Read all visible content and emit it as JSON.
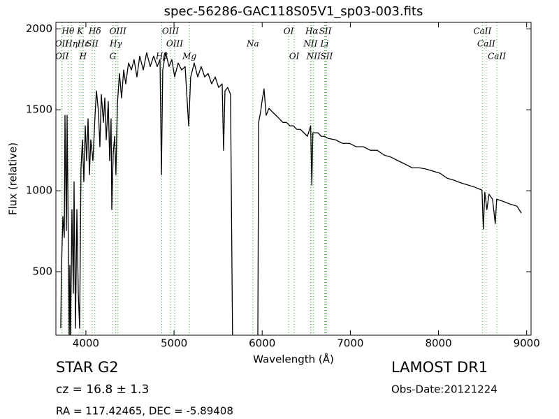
{
  "chart_data": {
    "type": "line",
    "title": "spec-56286-GAC118S05V1_sp03-003.fits",
    "x_label": "Wavelength (Å)",
    "y_label": "Flux (relative)",
    "xlim": [
      3660,
      9050
    ],
    "ylim": [
      108,
      2040
    ],
    "xticks": [
      4000,
      5000,
      6000,
      7000,
      8000,
      9000
    ],
    "yticks": [
      500,
      1000,
      1500,
      2000
    ],
    "series": [
      {
        "color": "#000000",
        "x": [
          3715,
          3723,
          3739,
          3755,
          3763,
          3779,
          3787,
          3795,
          3811,
          3818,
          3826,
          3842,
          3858,
          3866,
          3882,
          3898,
          3914,
          3929,
          3945,
          3961,
          3977,
          3993,
          4009,
          4025,
          4040,
          4056,
          4080,
          4104,
          4120,
          4143,
          4159,
          4175,
          4199,
          4215,
          4231,
          4254,
          4270,
          4286,
          4294,
          4310,
          4326,
          4341,
          4357,
          4381,
          4405,
          4429,
          4452,
          4484,
          4516,
          4547,
          4579,
          4611,
          4651,
          4690,
          4730,
          4769,
          4809,
          4841,
          4857,
          4872,
          4904,
          4944,
          4975,
          5007,
          5047,
          5086,
          5126,
          5166,
          5189,
          5229,
          5269,
          5308,
          5348,
          5387,
          5427,
          5467,
          5506,
          5546,
          5562,
          5578,
          5609,
          5641,
          5665,
          5950,
          5960,
          5982,
          5998,
          6021,
          6045,
          6077,
          6116,
          6156,
          6196,
          6235,
          6275,
          6315,
          6354,
          6394,
          6433,
          6473,
          6513,
          6550,
          6563,
          6575,
          6592,
          6632,
          6671,
          6711,
          6750,
          6830,
          6909,
          6988,
          7067,
          7147,
          7226,
          7305,
          7384,
          7464,
          7543,
          7622,
          7701,
          7780,
          7860,
          7939,
          8018,
          8097,
          8177,
          8256,
          8335,
          8414,
          8493,
          8509,
          8525,
          8549,
          8573,
          8613,
          8644,
          8660,
          8731,
          8811,
          8890,
          8940
        ],
        "values": [
          151,
          517,
          841,
          711,
          1466,
          754,
          1466,
          1013,
          80,
          539,
          80,
          884,
          367,
          1056,
          151,
          884,
          367,
          151,
          1142,
          1315,
          1056,
          1401,
          1185,
          1444,
          1099,
          1315,
          1185,
          1466,
          1616,
          1487,
          1272,
          1595,
          1422,
          1573,
          1315,
          1552,
          1185,
          1444,
          884,
          1229,
          1336,
          1099,
          1530,
          1724,
          1573,
          1746,
          1660,
          1789,
          1746,
          1810,
          1703,
          1832,
          1746,
          1853,
          1767,
          1832,
          1767,
          1810,
          1099,
          1746,
          1853,
          1767,
          1810,
          1703,
          1789,
          1746,
          1767,
          1401,
          1703,
          1789,
          1703,
          1767,
          1703,
          1724,
          1660,
          1703,
          1638,
          1660,
          1250,
          1616,
          1638,
          1595,
          20,
          20,
          1422,
          1487,
          1552,
          1629,
          1466,
          1509,
          1487,
          1466,
          1444,
          1422,
          1422,
          1401,
          1401,
          1379,
          1379,
          1358,
          1336,
          1401,
          1034,
          1358,
          1358,
          1358,
          1336,
          1336,
          1323,
          1315,
          1293,
          1293,
          1272,
          1272,
          1250,
          1250,
          1220,
          1207,
          1185,
          1164,
          1142,
          1142,
          1134,
          1121,
          1108,
          1078,
          1065,
          1048,
          1035,
          1022,
          1004,
          763,
          991,
          884,
          979,
          948,
          797,
          948,
          935,
          918,
          905,
          862
        ]
      }
    ],
    "lines": [
      {
        "label": "OII",
        "wavelength": 3727
      },
      {
        "label": "OII",
        "wavelength": 3729
      },
      {
        "label": "Hθ",
        "wavelength": 3798
      },
      {
        "label": "Hη",
        "wavelength": 3835
      },
      {
        "label": "K",
        "wavelength": 3934
      },
      {
        "label": "H",
        "wavelength": 3968
      },
      {
        "label": "Hε",
        "wavelength": 3970
      },
      {
        "label": "SII",
        "wavelength": 4072
      },
      {
        "label": "Hδ",
        "wavelength": 4102
      },
      {
        "label": "G",
        "wavelength": 4305
      },
      {
        "label": "Hγ",
        "wavelength": 4340
      },
      {
        "label": "OIII",
        "wavelength": 4363
      },
      {
        "label": "Hβ",
        "wavelength": 4861
      },
      {
        "label": "OIII",
        "wavelength": 4959
      },
      {
        "label": "OIII",
        "wavelength": 5007
      },
      {
        "label": "Mg",
        "wavelength": 5175
      },
      {
        "label": "Na",
        "wavelength": 5894
      },
      {
        "label": "OI",
        "wavelength": 6300
      },
      {
        "label": "OI",
        "wavelength": 6363
      },
      {
        "label": "NII",
        "wavelength": 6548
      },
      {
        "label": "Hα",
        "wavelength": 6563
      },
      {
        "label": "NII",
        "wavelength": 6583
      },
      {
        "label": "Li",
        "wavelength": 6707
      },
      {
        "label": "SII",
        "wavelength": 6716
      },
      {
        "label": "SII",
        "wavelength": 6731
      },
      {
        "label": "CaII",
        "wavelength": 8498
      },
      {
        "label": "CaII",
        "wavelength": 8542
      },
      {
        "label": "CaII",
        "wavelength": 8662
      }
    ],
    "object_class": "STAR",
    "subclass": "G2",
    "redshift": "cz = 16.8 ± 1.3",
    "coordinates": "RA = 117.42465, DEC = -5.89408",
    "survey": "LAMOST DR1",
    "obs_date": "Obs-Date:20121224"
  }
}
